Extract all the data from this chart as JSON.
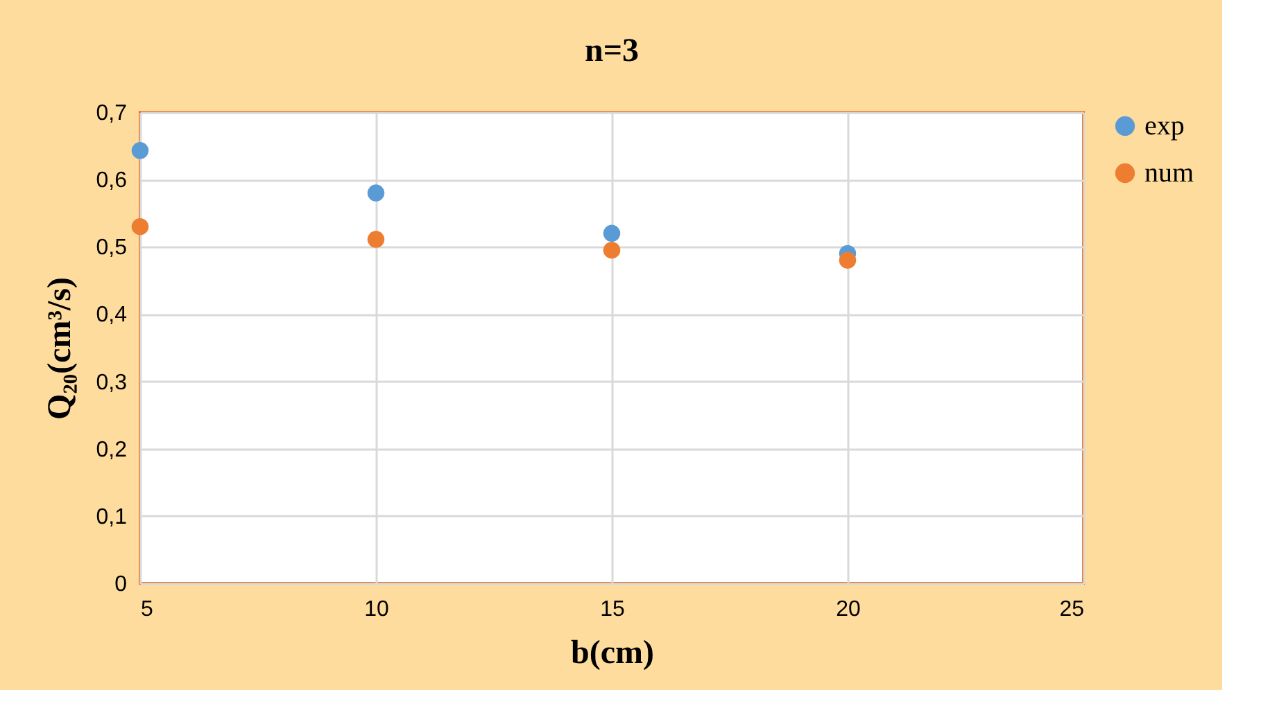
{
  "chart_data": {
    "type": "scatter",
    "title": "n=3",
    "xlabel": "b(cm)",
    "ylabel": "Q₂₀(cm³/s)",
    "x": [
      5,
      10,
      15,
      20
    ],
    "series": [
      {
        "name": "exp",
        "color": "#5b9bd5",
        "values": [
          0.643,
          0.58,
          0.52,
          0.49
        ]
      },
      {
        "name": "num",
        "color": "#ed7d31",
        "values": [
          0.53,
          0.511,
          0.495,
          0.48
        ]
      }
    ],
    "xlim": [
      5,
      25
    ],
    "xticks": [
      5,
      10,
      15,
      20,
      25
    ],
    "ylim": [
      0,
      0.7
    ],
    "yticks": [
      {
        "value": 0,
        "label": "0"
      },
      {
        "value": 0.1,
        "label": "0,1"
      },
      {
        "value": 0.2,
        "label": "0,2"
      },
      {
        "value": 0.3,
        "label": "0,3"
      },
      {
        "value": 0.4,
        "label": "0,4"
      },
      {
        "value": 0.5,
        "label": "0,5"
      },
      {
        "value": 0.6,
        "label": "0,6"
      },
      {
        "value": 0.7,
        "label": "0,7"
      }
    ],
    "grid": true,
    "legend": "right",
    "marker": "circle"
  }
}
